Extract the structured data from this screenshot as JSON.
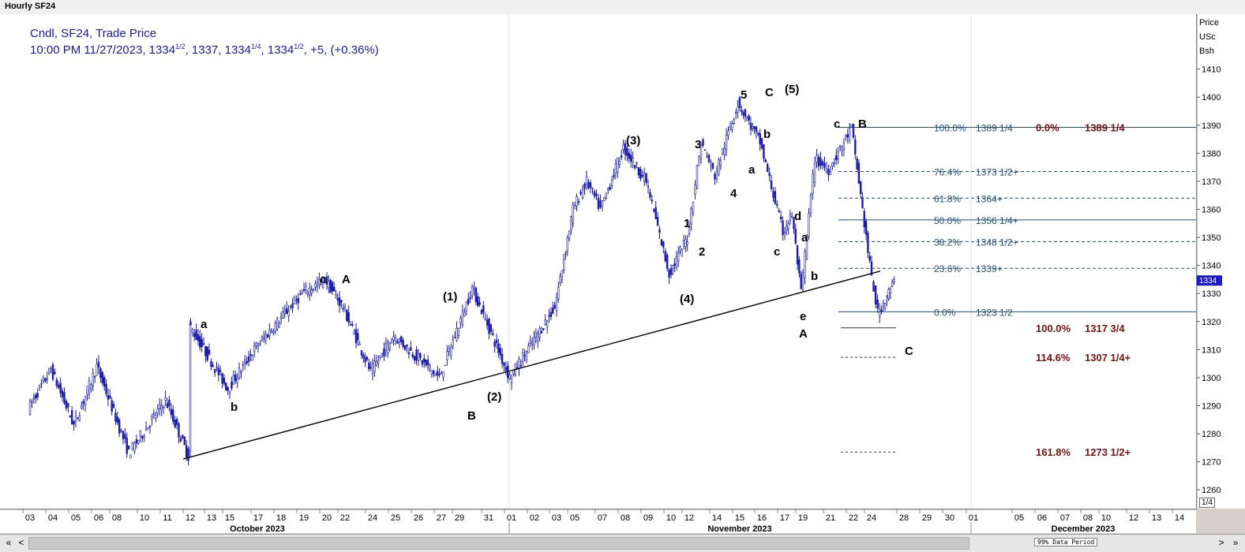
{
  "window": {
    "title": "Hourly SF24"
  },
  "legend": {
    "line1": "Cndl, SF24, Trade Price",
    "line2_prefix": "10:00 PM 11/27/2023, ",
    "ohlc": [
      {
        "whole": "1334",
        "frac": "1/2"
      },
      {
        "whole": "1337",
        "frac": ""
      },
      {
        "whole": "1334",
        "frac": "1/4"
      },
      {
        "whole": "1334",
        "frac": "1/2"
      }
    ],
    "change": ", +5, (+0.36%)"
  },
  "price_axis_header": {
    "line1": "Price",
    "line2": "USc",
    "line3": "Bsh"
  },
  "zoom_label": "1/4",
  "status_bar": {
    "label": "99% Data Period",
    "left_btn": "«",
    "prev_btn": "<",
    "next_btn": ">",
    "right_btn": "»"
  },
  "colors": {
    "candle": "#1a1aa8",
    "fib_blue": "#1f4e79",
    "fib_red": "#7b1010",
    "trendline": "#000000"
  },
  "chart_data": {
    "type": "candlestick",
    "title": "Hourly SF24",
    "ylim": [
      1255,
      1418
    ],
    "y_ticks": [
      1260,
      1270,
      1280,
      1290,
      1300,
      1310,
      1320,
      1330,
      1340,
      1350,
      1360,
      1370,
      1380,
      1390,
      1400,
      1410
    ],
    "x_day_labels": [
      "03",
      "04",
      "05",
      "06",
      "08",
      "10",
      "11",
      "12",
      "13",
      "15",
      "17",
      "18",
      "19",
      "20",
      "22",
      "24",
      "25",
      "26",
      "27",
      "29",
      "31",
      "01",
      "02",
      "03",
      "05",
      "07",
      "08",
      "09",
      "10",
      "12",
      "14",
      "15",
      "16",
      "17",
      "19",
      "21",
      "22",
      "24",
      "28",
      "29",
      "30",
      "01",
      "05",
      "06",
      "07",
      "08",
      "10",
      "12",
      "13",
      "14"
    ],
    "x_month_labels": [
      "October 2023",
      "November 2023",
      "December 2023"
    ],
    "last_price": "1334",
    "price_path": [
      [
        "10/03",
        1289
      ],
      [
        "10/04",
        1303
      ],
      [
        "10/05",
        1283
      ],
      [
        "10/06",
        1304
      ],
      [
        "10/09",
        1273
      ],
      [
        "10/11",
        1292
      ],
      [
        "10/12",
        1272
      ],
      [
        "10/12",
        1319
      ],
      [
        "10/15",
        1296
      ],
      [
        "10/17",
        1311
      ],
      [
        "10/19",
        1330
      ],
      [
        "10/20",
        1335
      ],
      [
        "10/22",
        1325
      ],
      [
        "10/24",
        1302
      ],
      [
        "10/25",
        1315
      ],
      [
        "10/27",
        1300
      ],
      [
        "10/30",
        1332
      ],
      [
        "11/01",
        1300
      ],
      [
        "11/03",
        1325
      ],
      [
        "11/05",
        1360
      ],
      [
        "11/06",
        1370
      ],
      [
        "11/07",
        1360
      ],
      [
        "11/08",
        1382
      ],
      [
        "11/09",
        1370
      ],
      [
        "11/10",
        1337
      ],
      [
        "11/12",
        1350
      ],
      [
        "11/13",
        1384
      ],
      [
        "11/14",
        1372
      ],
      [
        "11/15",
        1398
      ],
      [
        "11/16",
        1384
      ],
      [
        "11/17",
        1352
      ],
      [
        "11/18",
        1358
      ],
      [
        "11/19",
        1330
      ],
      [
        "11/20",
        1378
      ],
      [
        "11/21",
        1374
      ],
      [
        "11/22",
        1389
      ],
      [
        "11/23",
        1365
      ],
      [
        "11/24",
        1340
      ],
      [
        "11/25",
        1323
      ],
      [
        "11/27",
        1334
      ]
    ],
    "trendline": [
      [
        "10/12",
        1271
      ],
      [
        "11/24",
        1338
      ]
    ],
    "wave_labels": [
      "a",
      "b",
      "c",
      "A",
      "(1)",
      "(2)",
      "B",
      "(3)",
      "(4)",
      "1",
      "2",
      "3",
      "4",
      "5",
      "C",
      "(5)",
      "a",
      "b",
      "c",
      "d",
      "e",
      "A",
      "a",
      "b",
      "c",
      "B",
      "C"
    ],
    "fib_retracements": [
      {
        "pct": "100.0%",
        "price": "1389 1/4",
        "value": 1389.25
      },
      {
        "pct": "76.4%",
        "price": "1373 1/2+",
        "value": 1373.5
      },
      {
        "pct": "61.8%",
        "price": "1364+",
        "value": 1364
      },
      {
        "pct": "50.0%",
        "price": "1356 1/4+",
        "value": 1356.25
      },
      {
        "pct": "38.2%",
        "price": "1348 1/2+",
        "value": 1348.5
      },
      {
        "pct": "23.6%",
        "price": "1339+",
        "value": 1339
      },
      {
        "pct": "0.0%",
        "price": "1323 1/2",
        "value": 1323.5
      }
    ],
    "fib_extensions": [
      {
        "pct": "0.0%",
        "price": "1389 1/4",
        "value": 1389.25
      },
      {
        "pct": "100.0%",
        "price": "1317 3/4",
        "value": 1317.75
      },
      {
        "pct": "114.6%",
        "price": "1307 1/4+",
        "value": 1307.25
      },
      {
        "pct": "161.8%",
        "price": "1273 1/2+",
        "value": 1273.5
      }
    ]
  }
}
